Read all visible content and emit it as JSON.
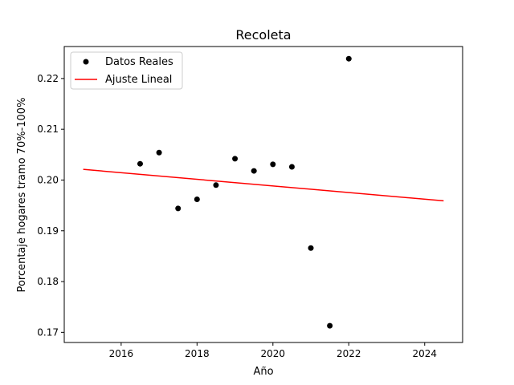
{
  "chart_data": {
    "type": "scatter",
    "title": "Recoleta",
    "xlabel": "Año",
    "ylabel": "Porcentaje hogares tramo 70%-100%",
    "xlim": [
      2014.5,
      2025.0
    ],
    "ylim": [
      0.168,
      0.2263
    ],
    "xticks": [
      2016,
      2018,
      2020,
      2022,
      2024
    ],
    "yticks": [
      0.17,
      0.18,
      0.19,
      0.2,
      0.21,
      0.22
    ],
    "ytick_labels": [
      "0.17",
      "0.18",
      "0.19",
      "0.20",
      "0.21",
      "0.22"
    ],
    "grid": false,
    "legend_position": "top-left",
    "series": [
      {
        "name": "Datos Reales",
        "kind": "scatter",
        "color": "#000000",
        "x": [
          2016.5,
          2017,
          2017.5,
          2018,
          2018.5,
          2019,
          2019.5,
          2020,
          2020.5,
          2021,
          2021.5,
          2022
        ],
        "y": [
          0.2032,
          0.2054,
          0.1944,
          0.1962,
          0.199,
          0.2042,
          0.2018,
          0.2031,
          0.2026,
          0.1866,
          0.1713,
          0.2239
        ]
      },
      {
        "name": "Ajuste Lineal",
        "kind": "line",
        "color": "#ff0000",
        "x": [
          2015,
          2024.5
        ],
        "y": [
          0.2021,
          0.1959
        ]
      }
    ]
  }
}
